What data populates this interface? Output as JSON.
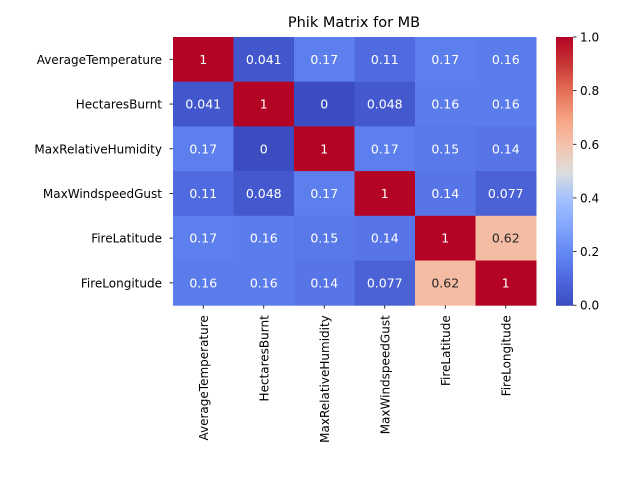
{
  "chart_data": {
    "type": "heatmap",
    "title": "Phik Matrix for MB",
    "rows": [
      "AverageTemperature",
      "HectaresBurnt",
      "MaxRelativeHumidity",
      "MaxWindspeedGust",
      "FireLatitude",
      "FireLongitude"
    ],
    "columns": [
      "AverageTemperature",
      "HectaresBurnt",
      "MaxRelativeHumidity",
      "MaxWindspeedGust",
      "FireLatitude",
      "FireLongitude"
    ],
    "values": [
      [
        1,
        0.041,
        0.17,
        0.11,
        0.17,
        0.16
      ],
      [
        0.041,
        1,
        0,
        0.048,
        0.16,
        0.16
      ],
      [
        0.17,
        0,
        1,
        0.17,
        0.15,
        0.14
      ],
      [
        0.11,
        0.048,
        0.17,
        1,
        0.14,
        0.077
      ],
      [
        0.17,
        0.16,
        0.15,
        0.14,
        1,
        0.62
      ],
      [
        0.16,
        0.16,
        0.14,
        0.077,
        0.62,
        1
      ]
    ],
    "value_labels": [
      [
        "1",
        "0.041",
        "0.17",
        "0.11",
        "0.17",
        "0.16"
      ],
      [
        "0.041",
        "1",
        "0",
        "0.048",
        "0.16",
        "0.16"
      ],
      [
        "0.17",
        "0",
        "1",
        "0.17",
        "0.15",
        "0.14"
      ],
      [
        "0.11",
        "0.048",
        "0.17",
        "1",
        "0.14",
        "0.077"
      ],
      [
        "0.17",
        "0.16",
        "0.15",
        "0.14",
        "1",
        "0.62"
      ],
      [
        "0.16",
        "0.16",
        "0.14",
        "0.077",
        "0.62",
        "1"
      ]
    ],
    "colormap": "coolwarm",
    "color_range": [
      0,
      1
    ],
    "colorbar_ticks": [
      "0.0",
      "0.2",
      "0.4",
      "0.6",
      "0.8",
      "1.0"
    ],
    "colors": {
      "low": "#3b4cc0",
      "mid": "#dddddd",
      "high": "#b40426"
    },
    "grid": false,
    "legend_placement": "right"
  }
}
